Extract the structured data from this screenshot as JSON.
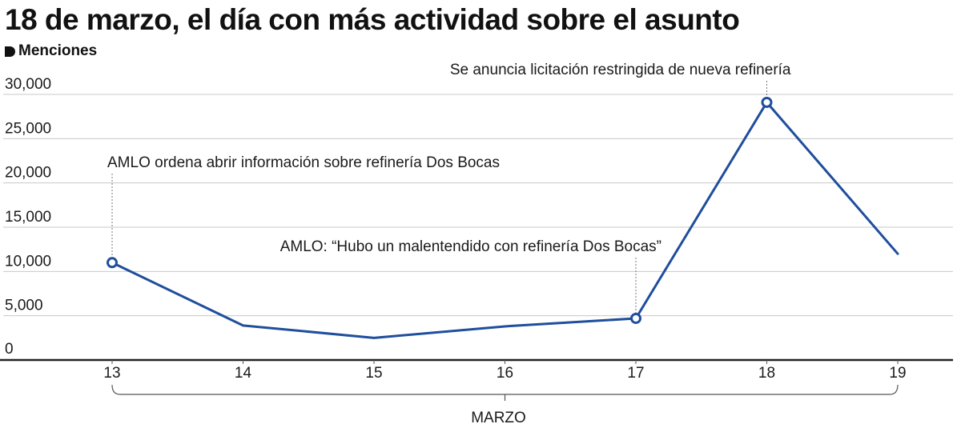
{
  "header": {
    "title": "18 de marzo, el día con más actividad sobre el asunto",
    "legend_label": "Menciones"
  },
  "chart_data": {
    "type": "line",
    "title": "18 de marzo, el día con más actividad sobre el asunto",
    "ylabel": "Menciones",
    "xlabel": "MARZO",
    "categories": [
      "13",
      "14",
      "15",
      "16",
      "17",
      "18",
      "19"
    ],
    "ylim": [
      0,
      30000
    ],
    "yticks": [
      0,
      5000,
      10000,
      15000,
      20000,
      25000,
      30000
    ],
    "ytick_labels": [
      "0",
      "5,000",
      "10,000",
      "15,000",
      "20,000",
      "25,000",
      "30,000"
    ],
    "grid": true,
    "series": [
      {
        "values": [
          11000,
          3900,
          2500,
          3800,
          4700,
          29100,
          12000
        ],
        "color": "#1f4e9c"
      }
    ],
    "markers": [
      0,
      4,
      5
    ],
    "annotations": [
      {
        "index": 0,
        "text": "AMLO ordena abrir información  sobre refinería Dos Bocas"
      },
      {
        "index": 4,
        "text": "AMLO: “Hubo un malentendido con refinería Dos Bocas”"
      },
      {
        "index": 5,
        "text": "Se anuncia licitación restringida de nueva refinería"
      }
    ]
  }
}
